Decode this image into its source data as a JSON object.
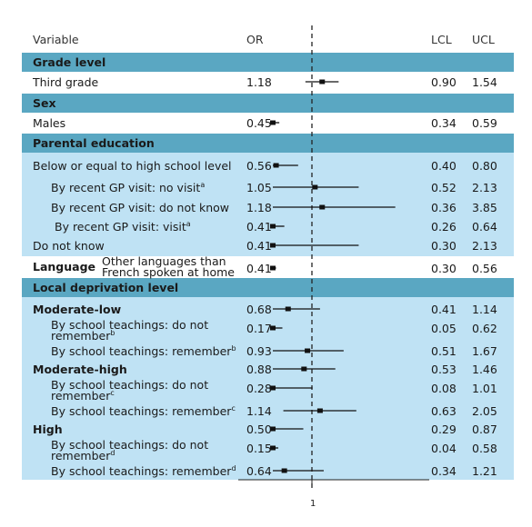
{
  "headers": {
    "variable": "Variable",
    "or": "OR",
    "lcl": "LCL",
    "ucl": "UCL"
  },
  "sections": {
    "grade": "Grade level",
    "sex": "Sex",
    "parental": "Parental education",
    "language": "Language",
    "deprivation": "Local deprivation level"
  },
  "rows": [
    {
      "label": "Third grade",
      "sup": "",
      "or": "1.18",
      "lcl": "0.90",
      "ucl": "1.54"
    },
    {
      "label": "Males",
      "sup": "",
      "or": "0.45",
      "lcl": "0.34",
      "ucl": "0.59"
    },
    {
      "label": "Below or equal to high school level",
      "sup": "",
      "or": "0.56",
      "lcl": "0.40",
      "ucl": "0.80"
    },
    {
      "label": "By recent GP visit: no visit",
      "sup": "a",
      "or": "1.05",
      "lcl": "0.52",
      "ucl": "2.13"
    },
    {
      "label": "By recent GP visit: do not know",
      "sup": "",
      "or": "1.18",
      "lcl": "0.36",
      "ucl": "3.85"
    },
    {
      "label": "By recent GP visit: visit",
      "sup": "a",
      "or": "0.41",
      "lcl": "0.26",
      "ucl": "0.64"
    },
    {
      "label": "Do not know",
      "sup": "",
      "or": "0.41",
      "lcl": "0.30",
      "ucl": "2.13"
    },
    {
      "label": "Other languages than French spoken at home",
      "sup": "",
      "or": "0.41",
      "lcl": "0.30",
      "ucl": "0.56"
    },
    {
      "label": "Moderate-low",
      "sup": "",
      "or": "0.68",
      "lcl": "0.41",
      "ucl": "1.14"
    },
    {
      "label": "By school teachings: do not remember",
      "sup": "b",
      "or": "0.17",
      "lcl": "0.05",
      "ucl": "0.62"
    },
    {
      "label": "By school teachings: remember",
      "sup": "b",
      "or": "0.93",
      "lcl": "0.51",
      "ucl": "1.67"
    },
    {
      "label": "Moderate-high",
      "sup": "",
      "or": "0.88",
      "lcl": "0.53",
      "ucl": "1.46"
    },
    {
      "label": "By school teachings: do not remember",
      "sup": "c",
      "or": "0.28",
      "lcl": "0.08",
      "ucl": "1.01"
    },
    {
      "label": "By school teachings: remember",
      "sup": "c",
      "or": "1.14",
      "lcl": "0.63",
      "ucl": "2.05"
    },
    {
      "label": "High",
      "sup": "",
      "or": "0.50",
      "lcl": "0.29",
      "ucl": "0.87"
    },
    {
      "label": "By school teachings: do not remember",
      "sup": "d",
      "or": "0.15",
      "lcl": "0.04",
      "ucl": "0.58"
    },
    {
      "label": "By school teachings: remember",
      "sup": "d",
      "or": "0.64",
      "lcl": "0.34",
      "ucl": "1.21"
    }
  ],
  "axis": {
    "ref_value": 1,
    "tick_label": "1"
  },
  "chart_data": {
    "type": "forest",
    "log_scale": true,
    "reference_line": 1,
    "xticks": [
      "1"
    ],
    "columns": [
      "Variable",
      "OR",
      "LCL",
      "UCL"
    ],
    "points": [
      {
        "label": "Third grade",
        "or": 1.18,
        "lcl": 0.9,
        "ucl": 1.54
      },
      {
        "label": "Males",
        "or": 0.45,
        "lcl": 0.34,
        "ucl": 0.59
      },
      {
        "label": "Below or equal to high school level",
        "or": 0.56,
        "lcl": 0.4,
        "ucl": 0.8
      },
      {
        "label": "By recent GP visit: no visit",
        "or": 1.05,
        "lcl": 0.52,
        "ucl": 2.13
      },
      {
        "label": "By recent GP visit: do not know",
        "or": 1.18,
        "lcl": 0.36,
        "ucl": 3.85
      },
      {
        "label": "By recent GP visit: visit",
        "or": 0.41,
        "lcl": 0.26,
        "ucl": 0.64
      },
      {
        "label": "Do not know",
        "or": 0.41,
        "lcl": 0.3,
        "ucl": 2.13
      },
      {
        "label": "Other languages than French spoken at home",
        "or": 0.41,
        "lcl": 0.3,
        "ucl": 0.56
      },
      {
        "label": "Moderate-low",
        "or": 0.68,
        "lcl": 0.41,
        "ucl": 1.14
      },
      {
        "label": "By school teachings: do not remember",
        "or": 0.17,
        "lcl": 0.05,
        "ucl": 0.62
      },
      {
        "label": "By school teachings: remember",
        "or": 0.93,
        "lcl": 0.51,
        "ucl": 1.67
      },
      {
        "label": "Moderate-high",
        "or": 0.88,
        "lcl": 0.53,
        "ucl": 1.46
      },
      {
        "label": "By school teachings: do not remember",
        "or": 0.28,
        "lcl": 0.08,
        "ucl": 1.01
      },
      {
        "label": "By school teachings: remember",
        "or": 1.14,
        "lcl": 0.63,
        "ucl": 2.05
      },
      {
        "label": "High",
        "or": 0.5,
        "lcl": 0.29,
        "ucl": 0.87
      },
      {
        "label": "By school teachings: do not remember",
        "or": 0.15,
        "lcl": 0.04,
        "ucl": 0.58
      },
      {
        "label": "By school teachings: remember",
        "or": 0.64,
        "lcl": 0.34,
        "ucl": 1.21
      }
    ]
  }
}
